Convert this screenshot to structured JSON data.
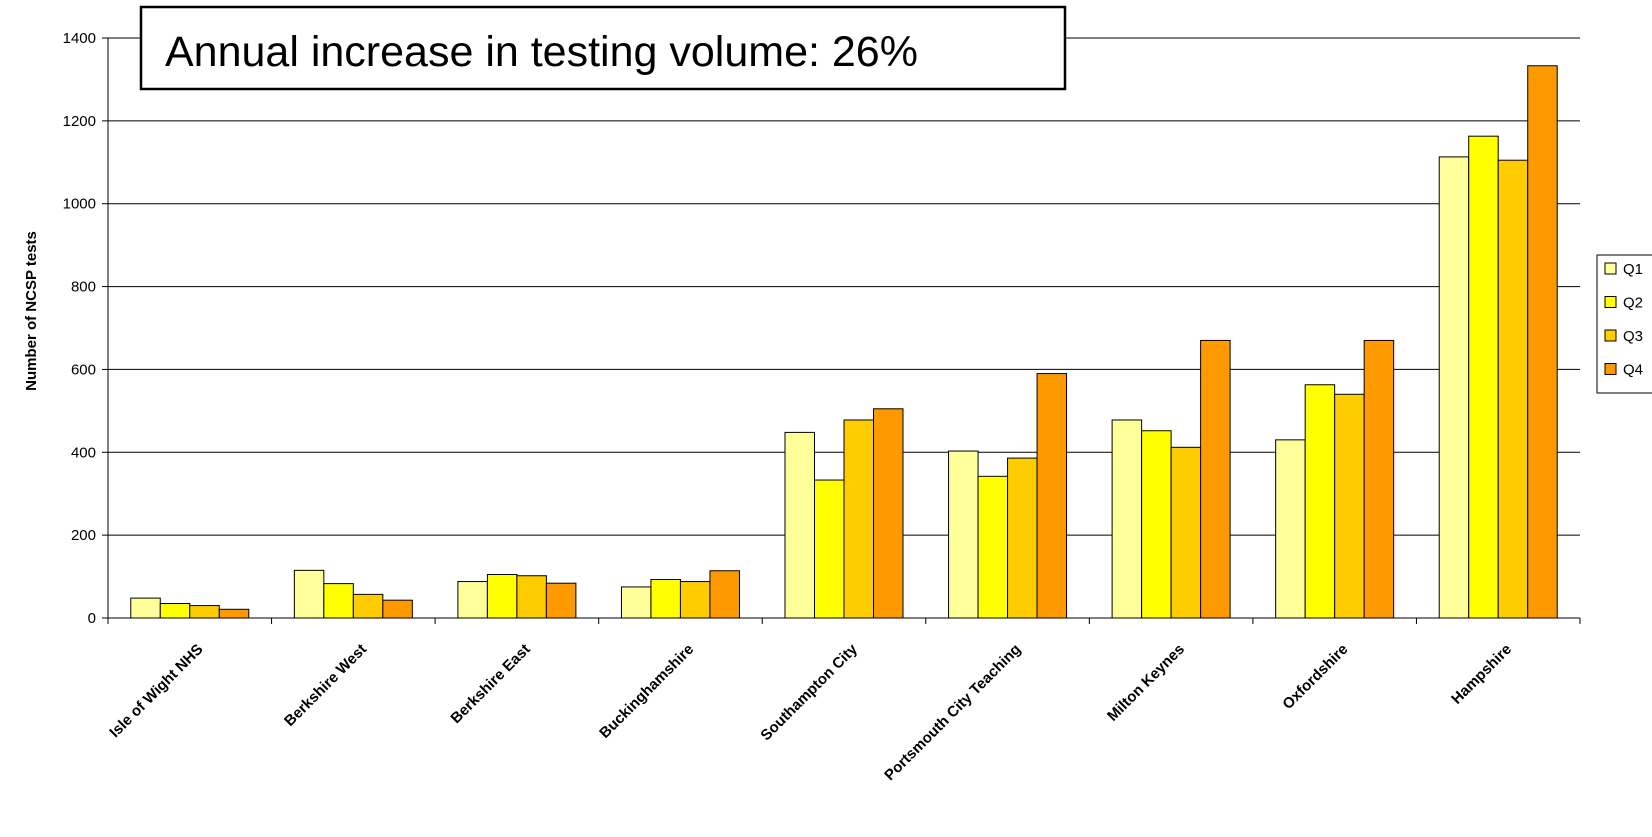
{
  "chart_data": {
    "type": "bar",
    "title": "",
    "annotation": "Annual increase in testing volume: 26%",
    "xlabel": "",
    "ylabel": "Number of NCSP tests",
    "ylim": [
      0,
      1400
    ],
    "yticks": [
      0,
      200,
      400,
      600,
      800,
      1000,
      1200,
      1400
    ],
    "grid": true,
    "legend_position": "right",
    "categories": [
      "Isle of Wight NHS",
      "Berkshire West",
      "Berkshire East",
      "Buckinghamshire",
      "Southampton City",
      "Portsmouth City Teaching",
      "Milton Keynes",
      "Oxfordshire",
      "Hampshire"
    ],
    "series": [
      {
        "name": "Q1",
        "color": "#FFFF99",
        "values": [
          48,
          115,
          88,
          75,
          448,
          403,
          478,
          430,
          1113
        ]
      },
      {
        "name": "Q2",
        "color": "#FFFF00",
        "values": [
          35,
          83,
          105,
          93,
          333,
          342,
          452,
          563,
          1163
        ]
      },
      {
        "name": "Q3",
        "color": "#FFCC00",
        "values": [
          30,
          57,
          102,
          88,
          478,
          386,
          412,
          540,
          1105
        ]
      },
      {
        "name": "Q4",
        "color": "#FF9900",
        "values": [
          21,
          43,
          84,
          114,
          505,
          590,
          670,
          670,
          1333
        ]
      }
    ]
  }
}
